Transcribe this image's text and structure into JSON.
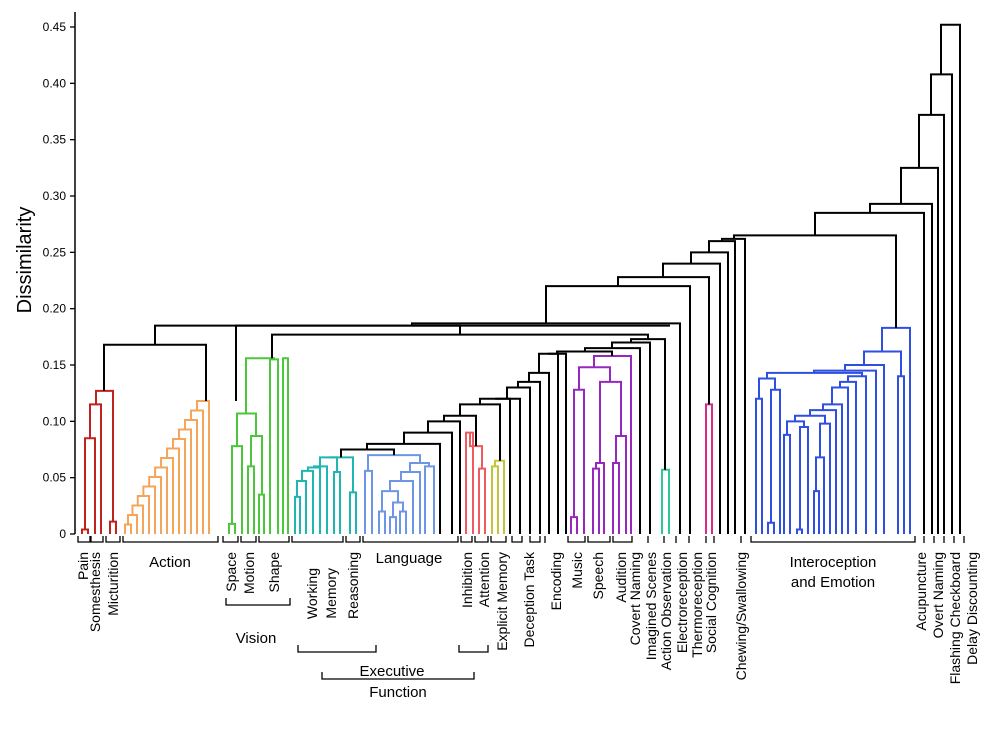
{
  "chart_data": {
    "type": "dendrogram",
    "ylabel": "Dissimilarity",
    "ylim": [
      0,
      0.45
    ],
    "y_ticks": [
      {
        "value": 0,
        "label": "0"
      },
      {
        "value": 0.05,
        "label": "0.05"
      },
      {
        "value": 0.1,
        "label": "0.10"
      },
      {
        "value": 0.15,
        "label": "0.15"
      },
      {
        "value": 0.2,
        "label": "0.20"
      },
      {
        "value": 0.25,
        "label": "0.25"
      },
      {
        "value": 0.3,
        "label": "0.30"
      },
      {
        "value": 0.35,
        "label": "0.35"
      },
      {
        "value": 0.4,
        "label": "0.40"
      },
      {
        "value": 0.45,
        "label": "0.45"
      }
    ],
    "group_colors": {
      "pain": "#c0221e",
      "action": "#f5a55a",
      "vision": "#4cc63a",
      "working_memory": "#1fb6b2",
      "language": "#6d96e6",
      "inhibition": "#ee5a5f",
      "attention": "#c4c43a",
      "music": "#9628c0",
      "action_observation": "#2ec893",
      "social_cognition": "#d92c8a",
      "interoception": "#2e4fe0",
      "other": "#000000"
    },
    "leaf_groups": [
      {
        "label": "Pain",
        "orientation": "vertical",
        "color": "pain"
      },
      {
        "label": "Somesthesis",
        "orientation": "vertical",
        "color": "pain"
      },
      {
        "label": "Micturition",
        "orientation": "vertical",
        "color": "pain"
      },
      {
        "label": "Action",
        "orientation": "horizontal",
        "color": "action"
      },
      {
        "label": "Space",
        "orientation": "vertical",
        "color": "vision"
      },
      {
        "label": "Motion",
        "orientation": "vertical",
        "color": "vision"
      },
      {
        "label": "Shape",
        "orientation": "vertical",
        "color": "vision"
      },
      {
        "label": "Working",
        "orientation": "vertical",
        "color": "working_memory"
      },
      {
        "label": "Memory",
        "orientation": "vertical",
        "color": "working_memory"
      },
      {
        "label": "Reasoning",
        "orientation": "vertical",
        "color": "working_memory"
      },
      {
        "label": "Language",
        "orientation": "horizontal",
        "color": "language"
      },
      {
        "label": "Inhibition",
        "orientation": "vertical",
        "color": "inhibition"
      },
      {
        "label": "Attention",
        "orientation": "vertical",
        "color": "inhibition"
      },
      {
        "label": "Explicit Memory",
        "orientation": "vertical",
        "color": "attention"
      },
      {
        "label": "Deception Task",
        "orientation": "vertical",
        "color": "other"
      },
      {
        "label": "Encoding",
        "orientation": "vertical",
        "color": "other"
      },
      {
        "label": "Music",
        "orientation": "vertical",
        "color": "music"
      },
      {
        "label": "Speech",
        "orientation": "vertical",
        "color": "music"
      },
      {
        "label": "Audition",
        "orientation": "vertical",
        "color": "music"
      },
      {
        "label": "Covert Naming",
        "orientation": "vertical",
        "color": "other"
      },
      {
        "label": "Imagined Scenes",
        "orientation": "vertical",
        "color": "other"
      },
      {
        "label": "Action Observation",
        "orientation": "vertical",
        "color": "action_observation"
      },
      {
        "label": "Electroreception",
        "orientation": "vertical",
        "color": "other"
      },
      {
        "label": "Thermoreception",
        "orientation": "vertical",
        "color": "other"
      },
      {
        "label": "Social Cognition",
        "orientation": "vertical",
        "color": "social_cognition"
      },
      {
        "label": "Chewing/Swallowing",
        "orientation": "vertical",
        "color": "other"
      },
      {
        "label": "Interoception",
        "orientation": "horizontal",
        "color": "interoception"
      },
      {
        "label": "and Emotion",
        "orientation": "horizontal",
        "color": "interoception"
      },
      {
        "label": "Acupuncture",
        "orientation": "vertical",
        "color": "other"
      },
      {
        "label": "Overt Naming",
        "orientation": "vertical",
        "color": "other"
      },
      {
        "label": "Flashing Checkboard",
        "orientation": "vertical",
        "color": "other"
      },
      {
        "label": "Delay Discounting",
        "orientation": "vertical",
        "color": "other"
      }
    ],
    "super_groups": [
      {
        "label": "Vision",
        "members": [
          "Space",
          "Motion",
          "Shape"
        ]
      },
      {
        "label": "Executive",
        "members": [
          "Working",
          "Memory",
          "Reasoning",
          "Inhibition",
          "Attention"
        ]
      },
      {
        "label": "Function",
        "members": [
          "Working",
          "Memory",
          "Reasoning",
          "Inhibition",
          "Attention"
        ]
      }
    ],
    "merge_heights": [
      {
        "cluster": "Pain / Somesthesis / Micturition",
        "height": 0.127
      },
      {
        "cluster": "Action",
        "height": 0.118
      },
      {
        "cluster": "Somatomotor (Pain + Action)",
        "height": 0.168
      },
      {
        "cluster": "Vision",
        "height": 0.156
      },
      {
        "cluster": "Working Memory / Reasoning",
        "height": 0.068
      },
      {
        "cluster": "Language",
        "height": 0.07
      },
      {
        "cluster": "Inhibition / Attention",
        "height": 0.09
      },
      {
        "cluster": "Music / Speech / Audition",
        "height": 0.158
      },
      {
        "cluster": "Cognitive branch",
        "height": 0.17
      },
      {
        "cluster": "Social Cognition",
        "height": 0.115
      },
      {
        "cluster": "Sensorimotor + Cognitive",
        "height": 0.183
      },
      {
        "cluster": "Main branch",
        "height": 0.22
      },
      {
        "cluster": "Interoception and Emotion",
        "height": 0.183
      },
      {
        "cluster": "Interoception joined",
        "height": 0.265
      },
      {
        "cluster": "Acupuncture joined",
        "height": 0.285
      },
      {
        "cluster": "Overt Naming joined",
        "height": 0.325
      },
      {
        "cluster": "Flashing Checkboard joined",
        "height": 0.372
      },
      {
        "cluster": "Delay Discounting joined",
        "height": 0.452
      }
    ]
  }
}
